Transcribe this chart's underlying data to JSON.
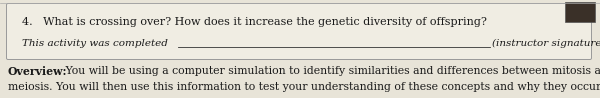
{
  "bg_color": "#e8e4d8",
  "box_bg": "#f0ede3",
  "box_border": "#999999",
  "question_text": "4.   What is crossing over? How does it increase the genetic diversity of offspring?",
  "activity_label": "This activity was completed",
  "signature_text": "(instructor signature)",
  "overview_bold": "Overview:",
  "overview_body": " You will be using a computer simulation to identify similarities and differences between mitosis an",
  "meiosis_line": "meiosis. You will then use this information to test your understanding of these concepts and why they occur.",
  "question_fontsize": 8.0,
  "activity_fontsize": 7.5,
  "overview_fontsize": 7.8,
  "text_color": "#1a1a1a",
  "line_color": "#333333"
}
